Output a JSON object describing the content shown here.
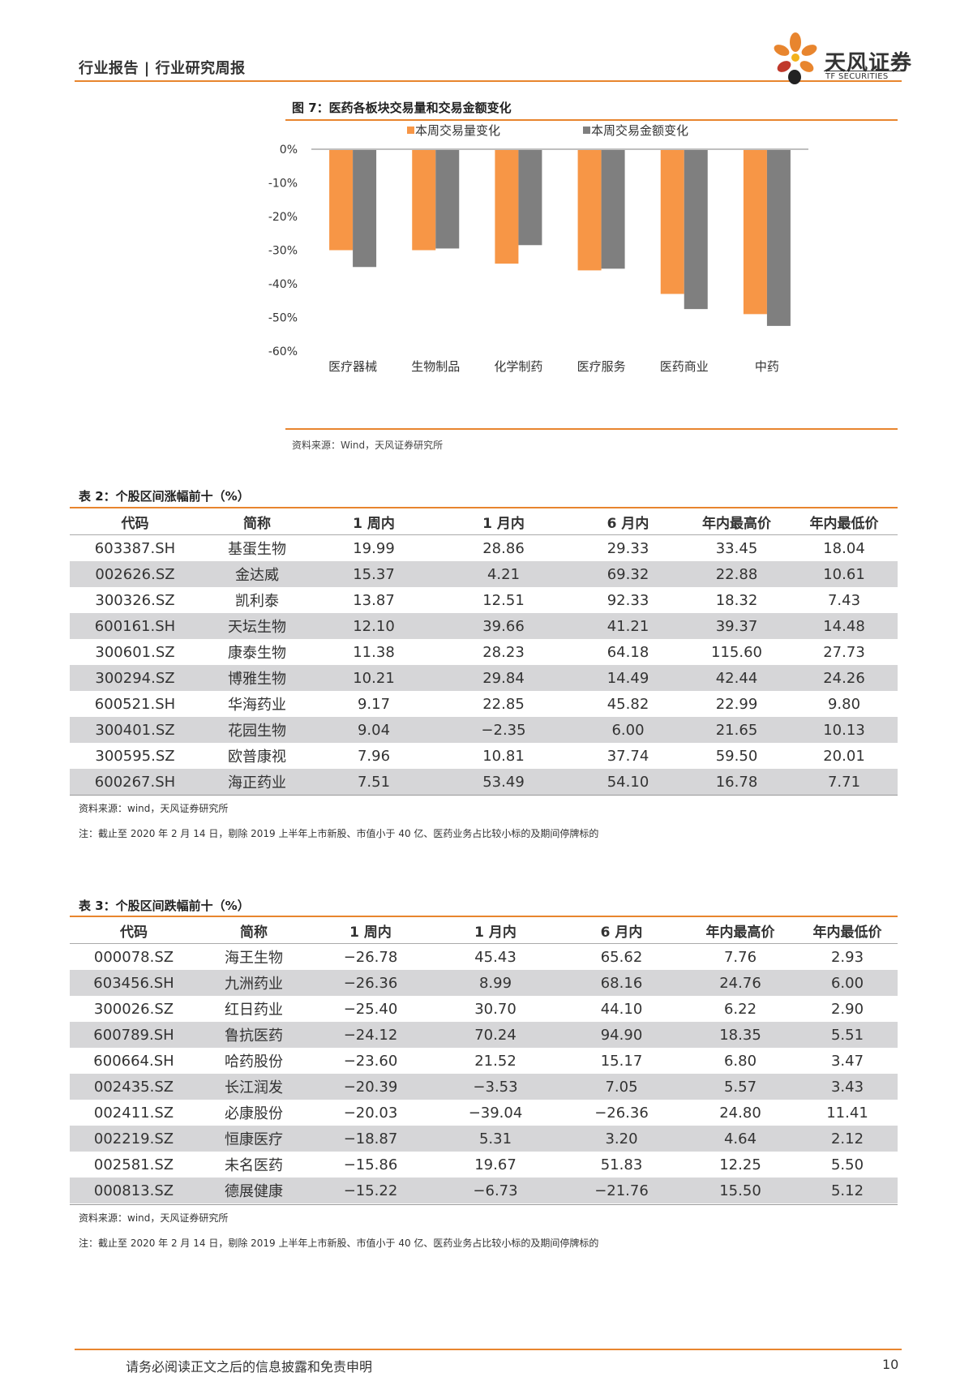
{
  "header": {
    "doc_type": "行业报告 | 行业研究周报",
    "brand_name": "天风证券",
    "brand_sub": "TF SECURITIES"
  },
  "colors": {
    "accent": "#e8852e",
    "series1": "#f79646",
    "series2": "#7f7f7f",
    "row_alt": "#d6d6d8"
  },
  "figure": {
    "title": "图 7：医药各板块交易量和交易金额变化",
    "source": "资料来源：Wind，天风证券研究所"
  },
  "chart_data": {
    "type": "bar",
    "title": "",
    "categories": [
      "医疗器械",
      "生物制品",
      "化学制药",
      "医疗服务",
      "医药商业",
      "中药"
    ],
    "series": [
      {
        "name": "本周交易量变化",
        "values": [
          -30,
          -30,
          -34,
          -36,
          -43,
          -49
        ]
      },
      {
        "name": "本周交易金额变化",
        "values": [
          -35,
          -29.5,
          -28.5,
          -35.5,
          -47.5,
          -52.5
        ]
      }
    ],
    "ylim": [
      -60,
      0
    ],
    "yticks": [
      "0%",
      "-10%",
      "-20%",
      "-30%",
      "-40%",
      "-50%",
      "-60%"
    ],
    "xlabel": "",
    "ylabel": "",
    "legend": "top"
  },
  "table2": {
    "title": "表 2：个股区间涨幅前十（%）",
    "headers": [
      "代码",
      "简称",
      "1 周内",
      "1 月内",
      "6 月内",
      "年内最高价",
      "年内最低价"
    ],
    "rows": [
      [
        "603387.SH",
        "基蛋生物",
        "19.99",
        "28.86",
        "29.33",
        "33.45",
        "18.04"
      ],
      [
        "002626.SZ",
        "金达威",
        "15.37",
        "4.21",
        "69.32",
        "22.88",
        "10.61"
      ],
      [
        "300326.SZ",
        "凯利泰",
        "13.87",
        "12.51",
        "92.33",
        "18.32",
        "7.43"
      ],
      [
        "600161.SH",
        "天坛生物",
        "12.10",
        "39.66",
        "41.21",
        "39.37",
        "14.48"
      ],
      [
        "300601.SZ",
        "康泰生物",
        "11.38",
        "28.23",
        "64.18",
        "115.60",
        "27.73"
      ],
      [
        "300294.SZ",
        "博雅生物",
        "10.21",
        "29.84",
        "14.49",
        "42.44",
        "24.26"
      ],
      [
        "600521.SH",
        "华海药业",
        "9.17",
        "22.85",
        "45.82",
        "22.99",
        "9.80"
      ],
      [
        "300401.SZ",
        "花园生物",
        "9.04",
        "−2.35",
        "6.00",
        "21.65",
        "10.13"
      ],
      [
        "300595.SZ",
        "欧普康视",
        "7.96",
        "10.81",
        "37.74",
        "59.50",
        "20.01"
      ],
      [
        "600267.SH",
        "海正药业",
        "7.51",
        "53.49",
        "54.10",
        "16.78",
        "7.71"
      ]
    ],
    "source": "资料来源：wind，天风证券研究所",
    "note": "注：截止至 2020 年 2 月 14 日，剔除 2019 上半年上市新股、市值小于 40 亿、医药业务占比较小标的及期间停牌标的"
  },
  "table3": {
    "title": "表 3：个股区间跌幅前十（%）",
    "headers": [
      "代码",
      "简称",
      "1 周内",
      "1 月内",
      "6 月内",
      "年内最高价",
      "年内最低价"
    ],
    "rows": [
      [
        "000078.SZ",
        "海王生物",
        "−26.78",
        "45.43",
        "65.62",
        "7.76",
        "2.93"
      ],
      [
        "603456.SH",
        "九洲药业",
        "−26.36",
        "8.99",
        "68.16",
        "24.76",
        "6.00"
      ],
      [
        "300026.SZ",
        "红日药业",
        "−25.40",
        "30.70",
        "44.10",
        "6.22",
        "2.90"
      ],
      [
        "600789.SH",
        "鲁抗医药",
        "−24.12",
        "70.24",
        "94.90",
        "18.35",
        "5.51"
      ],
      [
        "600664.SH",
        "哈药股份",
        "−23.60",
        "21.52",
        "15.17",
        "6.80",
        "3.47"
      ],
      [
        "002435.SZ",
        "长江润发",
        "−20.39",
        "−3.53",
        "7.05",
        "5.57",
        "3.43"
      ],
      [
        "002411.SZ",
        "必康股份",
        "−20.03",
        "−39.04",
        "−26.36",
        "24.80",
        "11.41"
      ],
      [
        "002219.SZ",
        "恒康医疗",
        "−18.87",
        "5.31",
        "3.20",
        "4.64",
        "2.12"
      ],
      [
        "002581.SZ",
        "未名医药",
        "−15.86",
        "19.67",
        "51.83",
        "12.25",
        "5.50"
      ],
      [
        "000813.SZ",
        "德展健康",
        "−15.22",
        "−6.73",
        "−21.76",
        "15.50",
        "5.12"
      ]
    ],
    "source": "资料来源：wind，天风证券研究所",
    "note": "注：截止至 2020 年 2 月 14 日，剔除 2019 上半年上市新股、市值小于 40 亿、医药业务占比较小标的及期间停牌标的"
  },
  "footer": {
    "disclaimer": "请务必阅读正文之后的信息披露和免责申明",
    "page_number": "10"
  }
}
